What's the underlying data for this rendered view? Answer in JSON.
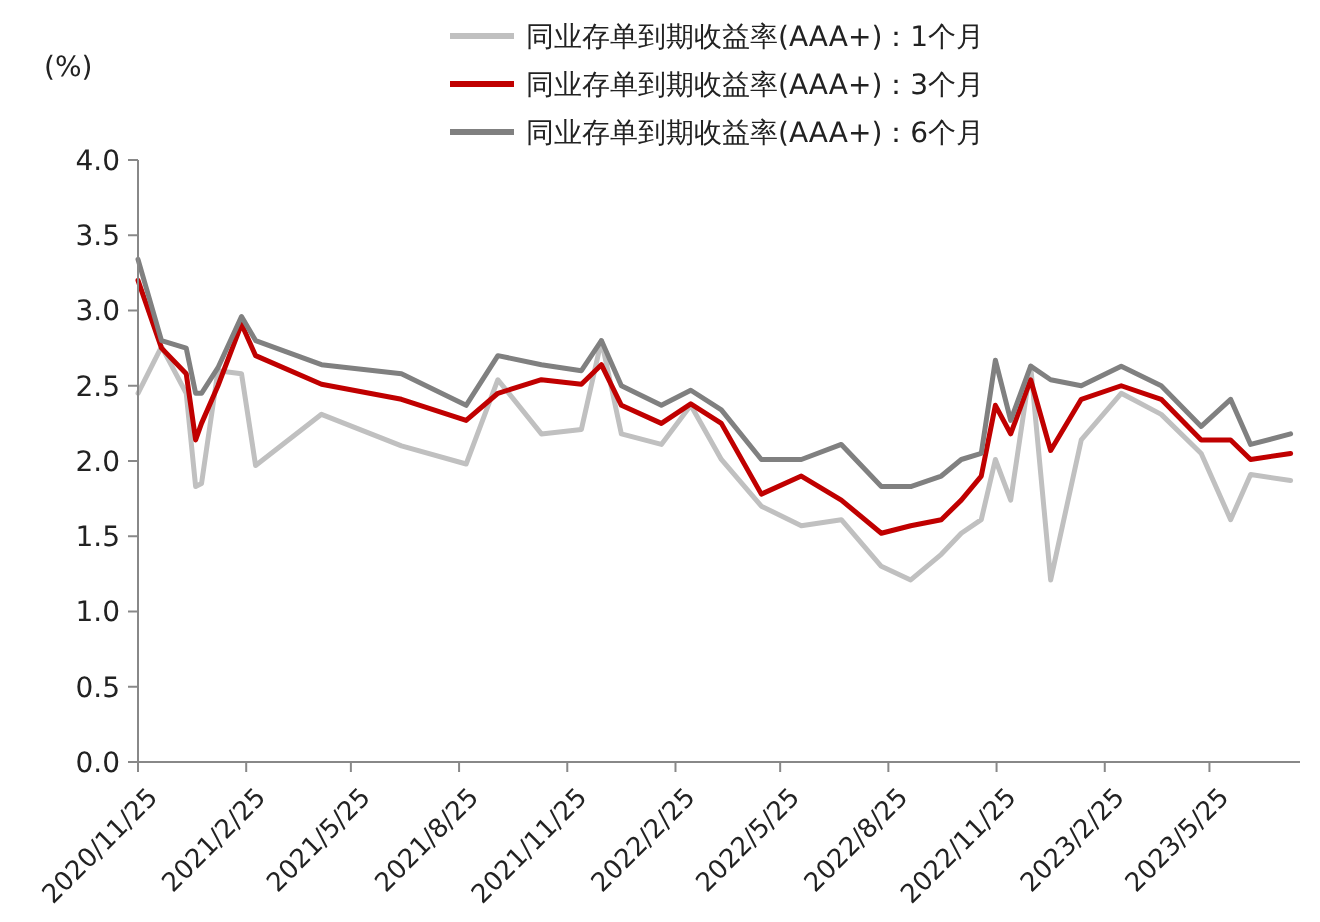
{
  "chart_data": {
    "type": "line",
    "ylabel": "(%)",
    "legend": "top",
    "grid": false,
    "marker": "none",
    "line_style": "solid",
    "x": [
      "2020-11-25",
      "2020-12-15",
      "2021-01-05",
      "2021-01-13",
      "2021-01-18",
      "2021-02-01",
      "2021-02-21",
      "2021-03-05",
      "2021-04-30",
      "2021-07-07",
      "2021-08-31",
      "2021-09-27",
      "2021-11-03",
      "2021-12-07",
      "2021-12-24",
      "2022-01-10",
      "2022-02-13",
      "2022-03-10",
      "2022-04-05",
      "2022-05-09",
      "2022-06-12",
      "2022-07-16",
      "2022-08-19",
      "2022-09-13",
      "2022-10-09",
      "2022-10-26",
      "2022-11-12",
      "2022-11-24",
      "2022-12-07",
      "2022-12-24",
      "2023-01-10",
      "2023-02-05",
      "2023-03-11",
      "2023-04-14",
      "2023-05-18",
      "2023-06-12",
      "2023-06-29",
      "2023-08-02"
    ],
    "series": [
      {
        "name": "同业存单到期收益率(AAA+)：1个月",
        "color": "#c0c0c0",
        "values": [
          2.45,
          2.76,
          2.45,
          1.83,
          1.85,
          2.6,
          2.58,
          1.97,
          2.31,
          2.1,
          1.98,
          2.54,
          2.18,
          2.21,
          2.8,
          2.18,
          2.11,
          2.37,
          2.01,
          1.7,
          1.57,
          1.61,
          1.3,
          1.21,
          1.38,
          1.52,
          1.61,
          2.01,
          1.74,
          2.63,
          1.21,
          2.14,
          2.45,
          2.31,
          2.05,
          1.61,
          1.91,
          1.87
        ]
      },
      {
        "name": "同业存单到期收益率(AAA+)：3个月",
        "color": "#c00000",
        "values": [
          3.2,
          2.75,
          2.58,
          2.14,
          2.25,
          2.5,
          2.91,
          2.7,
          2.51,
          2.41,
          2.27,
          2.45,
          2.54,
          2.51,
          2.64,
          2.37,
          2.25,
          2.38,
          2.25,
          1.78,
          1.9,
          1.74,
          1.52,
          1.57,
          1.61,
          1.74,
          1.9,
          2.37,
          2.18,
          2.54,
          2.07,
          2.41,
          2.5,
          2.41,
          2.14,
          2.14,
          2.01,
          2.05
        ]
      },
      {
        "name": "同业存单到期收益率(AAA+)：6个月",
        "color": "#808080",
        "values": [
          3.34,
          2.8,
          2.75,
          2.45,
          2.45,
          2.62,
          2.96,
          2.8,
          2.64,
          2.58,
          2.37,
          2.7,
          2.64,
          2.6,
          2.8,
          2.5,
          2.37,
          2.47,
          2.34,
          2.01,
          2.01,
          2.11,
          1.83,
          1.83,
          1.9,
          2.01,
          2.05,
          2.67,
          2.27,
          2.63,
          2.54,
          2.5,
          2.63,
          2.5,
          2.23,
          2.41,
          2.11,
          2.18
        ]
      }
    ],
    "xlim": [
      "2020-11-25",
      "2023-08-10"
    ],
    "xticks": [
      {
        "value": "2020-11-25",
        "label": "2020/11/25"
      },
      {
        "value": "2021-02-25",
        "label": "2021/2/25"
      },
      {
        "value": "2021-05-25",
        "label": "2021/5/25"
      },
      {
        "value": "2021-08-25",
        "label": "2021/8/25"
      },
      {
        "value": "2021-11-25",
        "label": "2021/11/25"
      },
      {
        "value": "2022-02-25",
        "label": "2022/2/25"
      },
      {
        "value": "2022-05-25",
        "label": "2022/5/25"
      },
      {
        "value": "2022-08-25",
        "label": "2022/8/25"
      },
      {
        "value": "2022-11-25",
        "label": "2022/11/25"
      },
      {
        "value": "2023-02-25",
        "label": "2023/2/25"
      },
      {
        "value": "2023-05-25",
        "label": "2023/5/25"
      }
    ],
    "ylim": [
      0,
      4
    ],
    "yticks": [
      {
        "value": 0,
        "label": "0.0"
      },
      {
        "value": 0.5,
        "label": "0.5"
      },
      {
        "value": 1,
        "label": "1.0"
      },
      {
        "value": 1.5,
        "label": "1.5"
      },
      {
        "value": 2,
        "label": "2.0"
      },
      {
        "value": 2.5,
        "label": "2.5"
      },
      {
        "value": 3,
        "label": "3.0"
      },
      {
        "value": 3.5,
        "label": "3.5"
      },
      {
        "value": 4,
        "label": "4.0"
      }
    ]
  }
}
